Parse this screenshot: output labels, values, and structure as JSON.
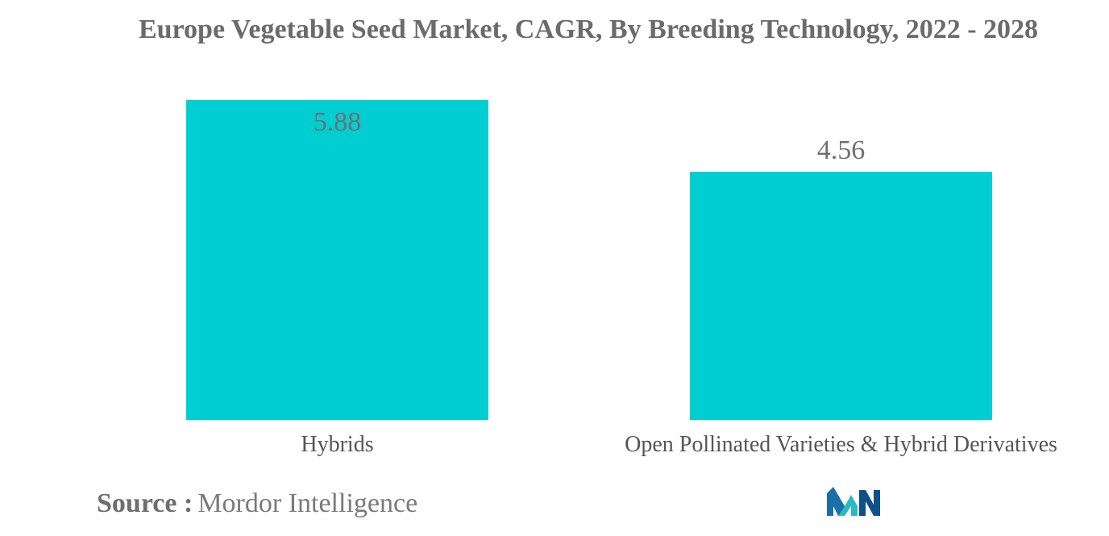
{
  "chart_data": {
    "type": "bar",
    "title": "Europe Vegetable Seed Market, CAGR, By Breeding Technology, 2022 - 2028",
    "categories": [
      "Hybrids",
      "Open Pollinated Varieties & Hybrid Derivatives"
    ],
    "values": [
      5.88,
      4.56
    ],
    "value_labels": [
      "5.88",
      "4.56"
    ],
    "xlabel": "",
    "ylabel": "",
    "ylim": [
      0,
      5.88
    ],
    "grid": false,
    "legend": "none",
    "bar_color": "#00ced1"
  },
  "source": {
    "label": "Source :",
    "value": "Mordor Intelligence"
  },
  "logo": {
    "icon": "mordor-intelligence-logo",
    "colors": [
      "#1a6fa8",
      "#2bb8c9",
      "#0f4f8a"
    ]
  }
}
